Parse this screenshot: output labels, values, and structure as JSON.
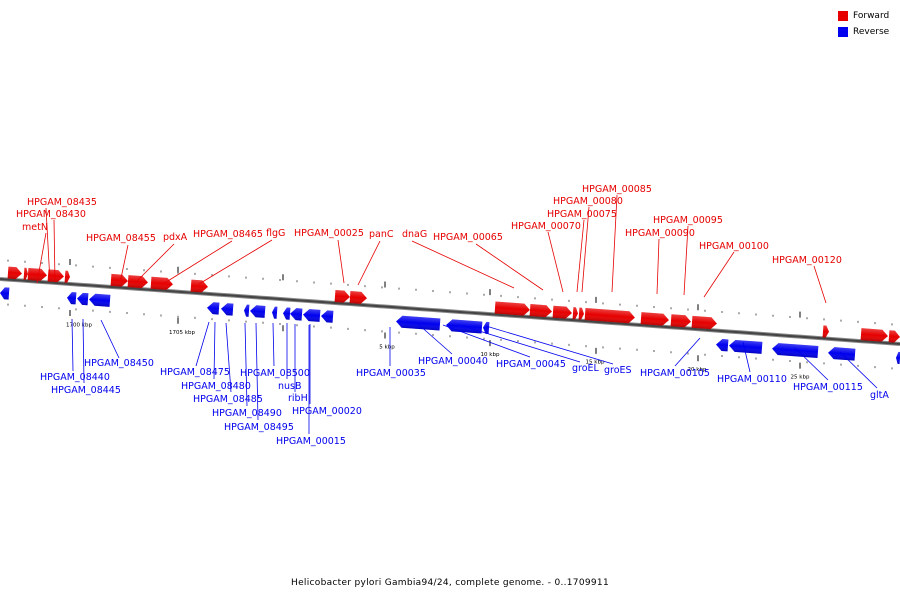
{
  "legend": {
    "forward_label": "Forward",
    "reverse_label": "Reverse",
    "forward_color": "#e60000",
    "reverse_color": "#0000ee"
  },
  "caption": "Helicobacter pylori Gambia94/24, complete genome. - 0..1709911",
  "scale_labels": [
    "1700 kbp",
    "1705 kbp",
    "5 kbp",
    "10 kbp",
    "15 kbp",
    "20 kbp",
    "25 kbp"
  ],
  "forward_labels": [
    "HPGAM_08435",
    "HPGAM_08430",
    "metN",
    "HPGAM_08455",
    "pdxA",
    "HPGAM_08465",
    "flgG",
    "HPGAM_00025",
    "panC",
    "dnaG",
    "HPGAM_00065",
    "HPGAM_00070",
    "HPGAM_00075",
    "HPGAM_00080",
    "HPGAM_00085",
    "HPGAM_00090",
    "HPGAM_00095",
    "HPGAM_00100",
    "HPGAM_00120"
  ],
  "reverse_labels": [
    "HPGAM_08450",
    "HPGAM_08440",
    "HPGAM_08445",
    "HPGAM_08475",
    "HPGAM_08480",
    "HPGAM_08485",
    "HPGAM_08490",
    "HPGAM_08495",
    "HPGAM_08500",
    "nusB",
    "ribH",
    "HPGAM_00020",
    "HPGAM_00015",
    "HPGAM_00035",
    "HPGAM_00040",
    "HPGAM_00045",
    "groEL",
    "groES",
    "HPGAM_00105",
    "HPGAM_00110",
    "HPGAM_00115",
    "gltA"
  ]
}
